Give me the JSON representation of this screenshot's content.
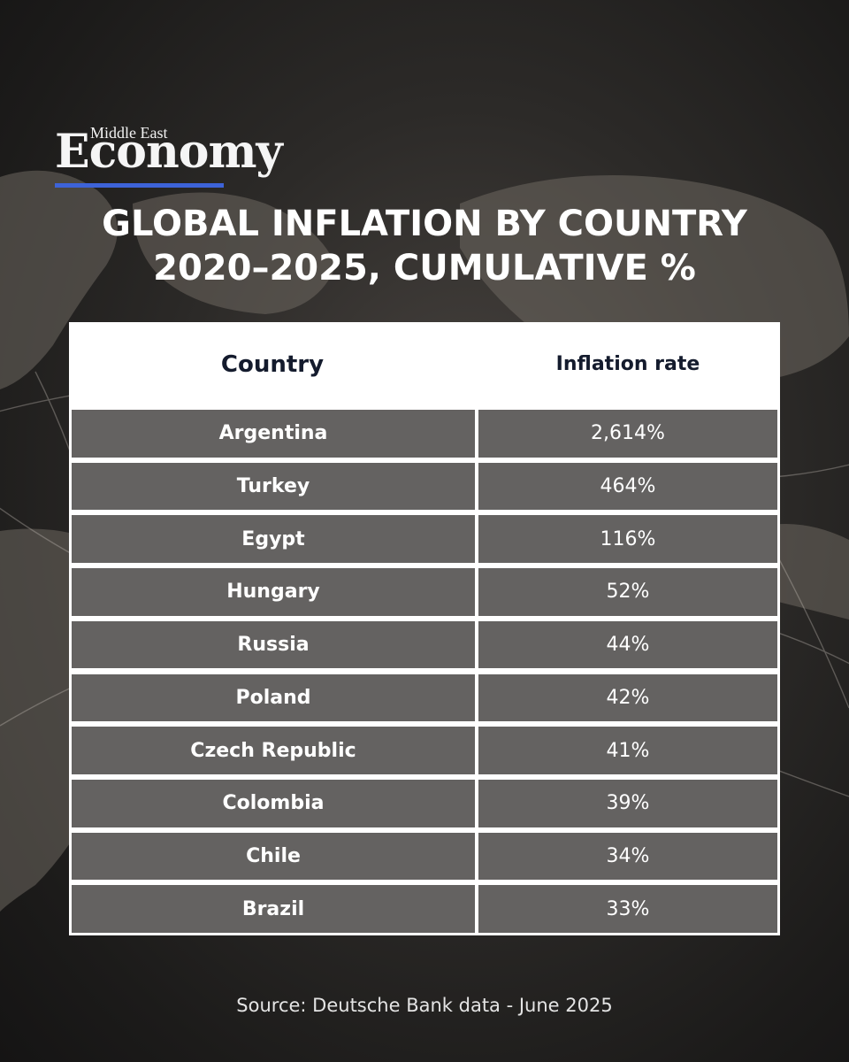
{
  "brand": {
    "small": "Middle East",
    "big": "Economy"
  },
  "title_lines": [
    "GLOBAL INFLATION BY COUNTRY",
    "2020–2025, CUMULATIVE %"
  ],
  "colors": {
    "accent": "#3d63d8",
    "header_bg": "#ffffff",
    "header_text": "#141b2d"
  },
  "chart_data": {
    "type": "table",
    "title": "GLOBAL INFLATION BY COUNTRY 2020–2025, CUMULATIVE %",
    "columns": [
      "Country",
      "Inflation rate"
    ],
    "rows": [
      {
        "country": "Argentina",
        "rate_label": "2,614%",
        "value": 2614
      },
      {
        "country": "Turkey",
        "rate_label": "464%",
        "value": 464
      },
      {
        "country": "Egypt",
        "rate_label": "116%",
        "value": 116
      },
      {
        "country": "Hungary",
        "rate_label": "52%",
        "value": 52
      },
      {
        "country": "Russia",
        "rate_label": "44%",
        "value": 44
      },
      {
        "country": "Poland",
        "rate_label": "42%",
        "value": 42
      },
      {
        "country": "Czech Republic",
        "rate_label": "41%",
        "value": 41
      },
      {
        "country": "Colombia",
        "rate_label": "39%",
        "value": 39
      },
      {
        "country": "Chile",
        "rate_label": "34%",
        "value": 34
      },
      {
        "country": "Brazil",
        "rate_label": "33%",
        "value": 33
      }
    ]
  },
  "source": "Source: Deutsche Bank data - June 2025"
}
